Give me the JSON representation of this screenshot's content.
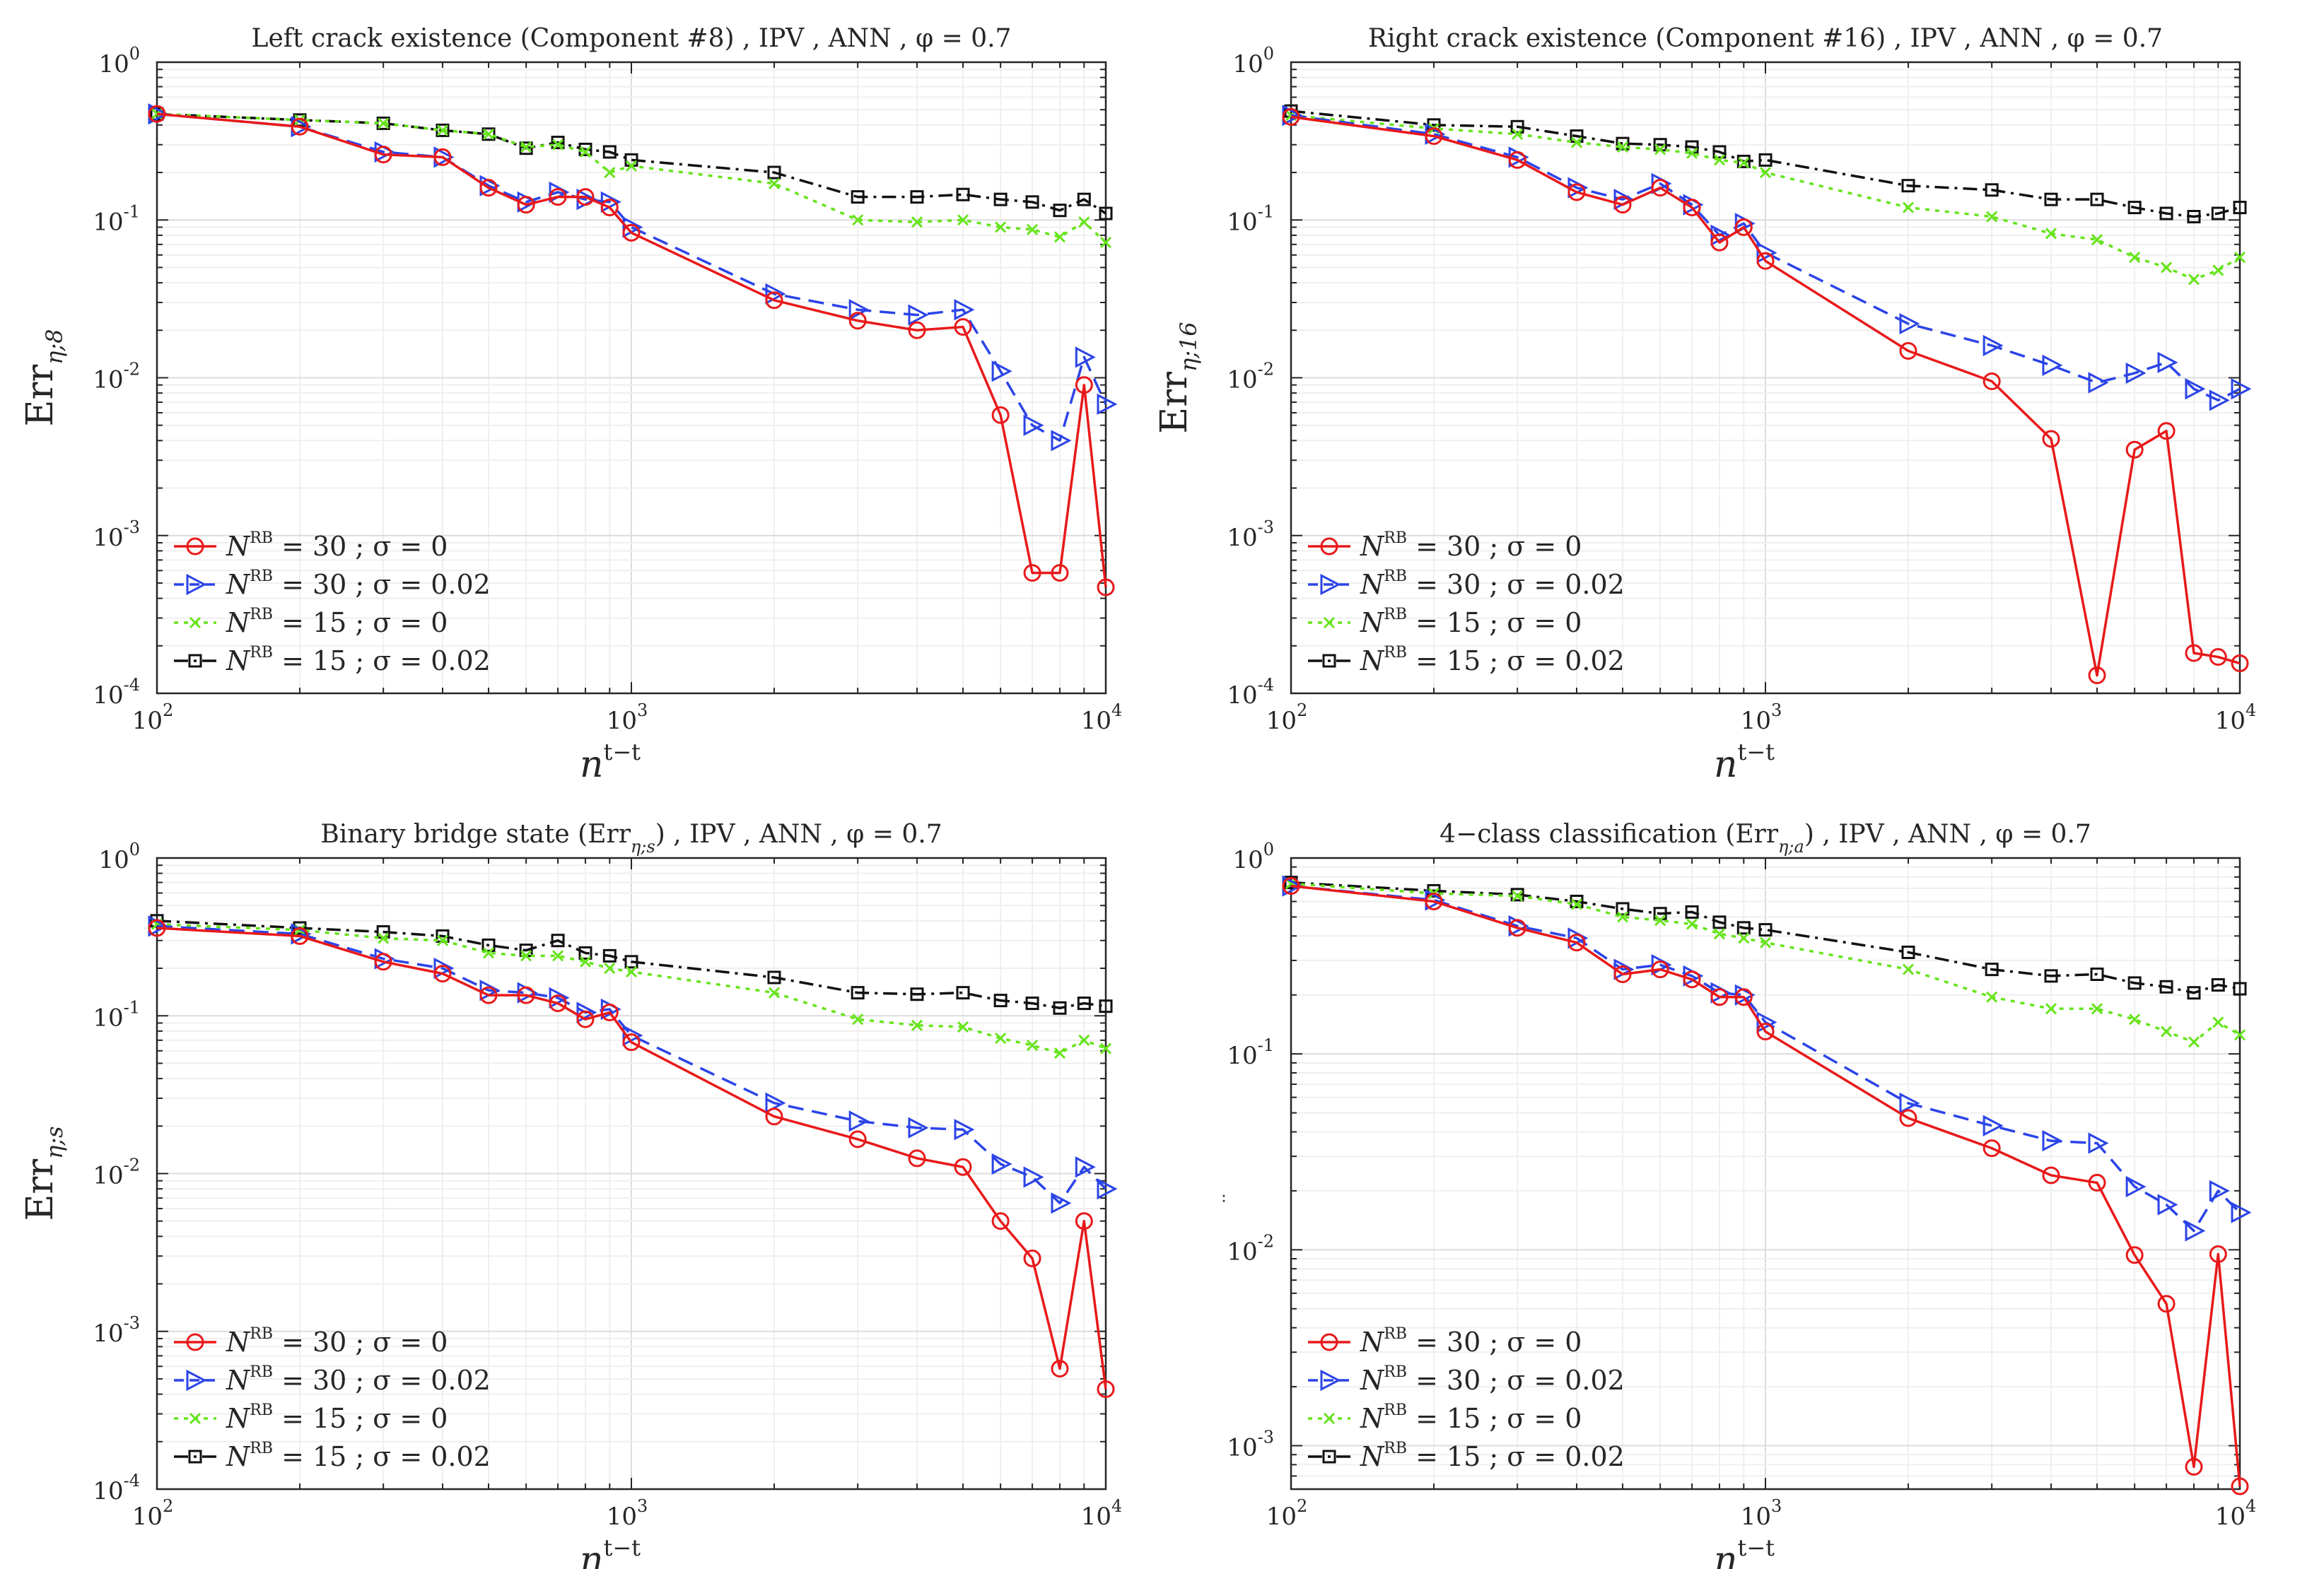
{
  "chart_data": [
    {
      "type": "line",
      "title": "Left crack existence (Component #8) , IPV , ANN , φ = 0.7",
      "xlabel": "n",
      "xlabel_sup": "t−t",
      "ylabel": "Err",
      "ylabel_sub": "η;8",
      "xscale": "log",
      "yscale": "log",
      "xlim": [
        100,
        10000
      ],
      "ylim": [
        0.0001,
        1
      ],
      "grid": true,
      "legend_position": "bottom-left",
      "x": [
        100,
        200,
        300,
        400,
        500,
        600,
        700,
        800,
        900,
        1000,
        2000,
        3000,
        4000,
        5000,
        6000,
        7000,
        8000,
        9000,
        10000
      ],
      "series": [
        {
          "name": "N^RB = 30 ; σ = 0",
          "values": [
            0.47,
            0.39,
            0.26,
            0.25,
            0.16,
            0.125,
            0.14,
            0.14,
            0.12,
            0.083,
            0.031,
            0.023,
            0.02,
            0.021,
            0.0058,
            0.00058,
            0.00058,
            0.009,
            0.00047
          ]
        },
        {
          "name": "N^RB = 30 ; σ = 0.02",
          "values": [
            0.47,
            0.39,
            0.27,
            0.25,
            0.165,
            0.13,
            0.15,
            0.135,
            0.13,
            0.09,
            0.034,
            0.027,
            0.025,
            0.027,
            0.011,
            0.005,
            0.004,
            0.0135,
            0.0068
          ]
        },
        {
          "name": "N^RB = 15 ; σ = 0",
          "values": [
            0.47,
            0.43,
            0.41,
            0.37,
            0.35,
            0.29,
            0.3,
            0.27,
            0.2,
            0.22,
            0.17,
            0.1,
            0.097,
            0.1,
            0.09,
            0.087,
            0.078,
            0.097,
            0.072
          ]
        },
        {
          "name": "N^RB = 15 ; σ = 0.02",
          "values": [
            0.47,
            0.43,
            0.41,
            0.37,
            0.35,
            0.285,
            0.31,
            0.28,
            0.27,
            0.24,
            0.2,
            0.14,
            0.14,
            0.145,
            0.135,
            0.13,
            0.115,
            0.135,
            0.11
          ]
        }
      ]
    },
    {
      "type": "line",
      "title": "Right crack existence (Component #16) , IPV , ANN , φ = 0.7",
      "xlabel": "n",
      "xlabel_sup": "t−t",
      "ylabel": "Err",
      "ylabel_sub": "η;16",
      "xscale": "log",
      "yscale": "log",
      "xlim": [
        100,
        10000
      ],
      "ylim": [
        0.0001,
        1
      ],
      "grid": true,
      "legend_position": "bottom-left",
      "x": [
        100,
        200,
        300,
        400,
        500,
        600,
        700,
        800,
        900,
        1000,
        2000,
        3000,
        4000,
        5000,
        6000,
        7000,
        8000,
        9000,
        10000
      ],
      "series": [
        {
          "name": "N^RB = 30 ; σ = 0",
          "values": [
            0.45,
            0.34,
            0.24,
            0.15,
            0.125,
            0.16,
            0.12,
            0.072,
            0.09,
            0.055,
            0.0148,
            0.0095,
            0.0041,
            0.00013,
            0.0035,
            0.0046,
            0.00018,
            0.00017,
            0.000155
          ]
        },
        {
          "name": "N^RB = 30 ; σ = 0.02",
          "values": [
            0.46,
            0.35,
            0.25,
            0.16,
            0.135,
            0.17,
            0.125,
            0.08,
            0.095,
            0.062,
            0.022,
            0.016,
            0.012,
            0.0093,
            0.0107,
            0.0125,
            0.0085,
            0.0072,
            0.0085
          ]
        },
        {
          "name": "N^RB = 15 ; σ = 0",
          "values": [
            0.46,
            0.38,
            0.35,
            0.31,
            0.29,
            0.28,
            0.265,
            0.24,
            0.23,
            0.2,
            0.12,
            0.105,
            0.082,
            0.075,
            0.058,
            0.05,
            0.042,
            0.048,
            0.058
          ]
        },
        {
          "name": "N^RB = 15 ; σ = 0.02",
          "values": [
            0.49,
            0.4,
            0.39,
            0.34,
            0.305,
            0.3,
            0.29,
            0.27,
            0.235,
            0.24,
            0.165,
            0.155,
            0.135,
            0.135,
            0.12,
            0.11,
            0.105,
            0.11,
            0.12
          ]
        }
      ]
    },
    {
      "type": "line",
      "title": "Binary bridge state (Err_η;s) , IPV , ANN , φ = 0.7",
      "xlabel": "n",
      "xlabel_sup": "t−t",
      "ylabel": "Err",
      "ylabel_sub": "η;s",
      "xscale": "log",
      "yscale": "log",
      "xlim": [
        100,
        10000
      ],
      "ylim": [
        0.0001,
        1
      ],
      "grid": true,
      "legend_position": "bottom-left",
      "x": [
        100,
        200,
        300,
        400,
        500,
        600,
        700,
        800,
        900,
        1000,
        2000,
        3000,
        4000,
        5000,
        6000,
        7000,
        8000,
        9000,
        10000
      ],
      "series": [
        {
          "name": "N^RB = 30 ; σ = 0",
          "values": [
            0.36,
            0.32,
            0.22,
            0.185,
            0.135,
            0.135,
            0.12,
            0.095,
            0.105,
            0.068,
            0.023,
            0.0165,
            0.0125,
            0.011,
            0.005,
            0.0029,
            0.00058,
            0.005,
            0.00043
          ]
        },
        {
          "name": "N^RB = 30 ; σ = 0.02",
          "values": [
            0.37,
            0.33,
            0.23,
            0.2,
            0.145,
            0.14,
            0.13,
            0.105,
            0.11,
            0.075,
            0.028,
            0.0215,
            0.0195,
            0.019,
            0.0115,
            0.0095,
            0.0065,
            0.011,
            0.008
          ]
        },
        {
          "name": "N^RB = 15 ; σ = 0",
          "values": [
            0.38,
            0.35,
            0.31,
            0.3,
            0.25,
            0.24,
            0.24,
            0.22,
            0.2,
            0.19,
            0.14,
            0.095,
            0.087,
            0.085,
            0.072,
            0.065,
            0.058,
            0.07,
            0.062
          ]
        },
        {
          "name": "N^RB = 15 ; σ = 0.02",
          "values": [
            0.4,
            0.36,
            0.34,
            0.32,
            0.28,
            0.26,
            0.3,
            0.25,
            0.24,
            0.22,
            0.175,
            0.14,
            0.137,
            0.14,
            0.125,
            0.12,
            0.112,
            0.12,
            0.115
          ]
        }
      ]
    },
    {
      "type": "line",
      "title": "4−class classification (Err_η;a) , IPV , ANN , φ = 0.7",
      "xlabel": "n",
      "xlabel_sup": "t−t",
      "ylabel": "",
      "ylabel_sub": "",
      "ylabel_mark": ":",
      "xscale": "log",
      "yscale": "log",
      "xlim": [
        100,
        10000
      ],
      "ylim": [
        0.0006,
        1
      ],
      "grid": true,
      "legend_position": "bottom-left",
      "x": [
        100,
        200,
        300,
        400,
        500,
        600,
        700,
        800,
        900,
        1000,
        2000,
        3000,
        4000,
        5000,
        6000,
        7000,
        8000,
        9000,
        10000
      ],
      "series": [
        {
          "name": "N^RB = 30 ; σ = 0",
          "values": [
            0.72,
            0.6,
            0.44,
            0.37,
            0.255,
            0.27,
            0.24,
            0.195,
            0.195,
            0.13,
            0.047,
            0.033,
            0.024,
            0.022,
            0.0094,
            0.0053,
            0.00078,
            0.0095,
            0.00062
          ]
        },
        {
          "name": "N^RB = 30 ; σ = 0.02",
          "values": [
            0.72,
            0.61,
            0.45,
            0.39,
            0.27,
            0.285,
            0.25,
            0.205,
            0.2,
            0.145,
            0.056,
            0.043,
            0.036,
            0.035,
            0.021,
            0.017,
            0.0125,
            0.02,
            0.0155
          ]
        },
        {
          "name": "N^RB = 15 ; σ = 0",
          "values": [
            0.74,
            0.66,
            0.64,
            0.58,
            0.5,
            0.48,
            0.46,
            0.41,
            0.39,
            0.37,
            0.27,
            0.195,
            0.17,
            0.17,
            0.15,
            0.13,
            0.115,
            0.145,
            0.125
          ]
        },
        {
          "name": "N^RB = 15 ; σ = 0.02",
          "values": [
            0.75,
            0.68,
            0.65,
            0.6,
            0.55,
            0.52,
            0.53,
            0.47,
            0.44,
            0.43,
            0.33,
            0.27,
            0.25,
            0.255,
            0.23,
            0.22,
            0.205,
            0.225,
            0.215
          ]
        }
      ]
    }
  ],
  "style": {
    "series_colors": [
      "#e8191a",
      "#2b44e8",
      "#66e41c",
      "#111111"
    ],
    "series_dash": [
      "none",
      "22,12",
      "6,8",
      "20,8,4,8"
    ],
    "series_markers": [
      "circle",
      "triangle-right",
      "x",
      "square"
    ],
    "axis_color": "#262626",
    "grid_color": "#e6e6e6"
  }
}
